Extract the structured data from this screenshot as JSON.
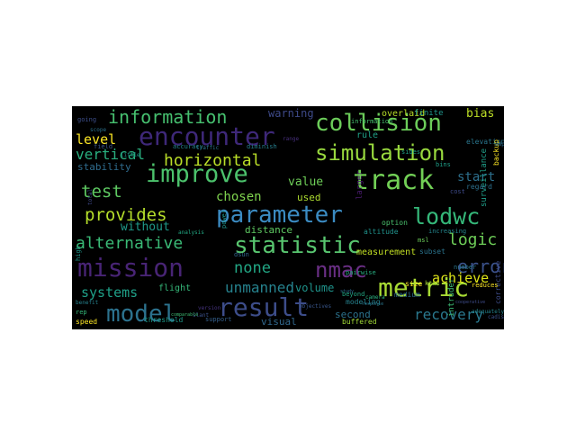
{
  "words": [
    {
      "text": "parameter",
      "color": "#3b8bc2"
    },
    {
      "text": "statistic",
      "color": "#58c56f"
    },
    {
      "text": "encounter",
      "color": "#3e2879"
    },
    {
      "text": "collision",
      "color": "#6ccd5a"
    },
    {
      "text": "simulation",
      "color": "#98d83e"
    },
    {
      "text": "improve",
      "color": "#4cc26c"
    },
    {
      "text": "track",
      "color": "#72d056"
    },
    {
      "text": "mission",
      "color": "#482475"
    },
    {
      "text": "model",
      "color": "#2c728e"
    },
    {
      "text": "result",
      "color": "#3d4d8a"
    },
    {
      "text": "metric",
      "color": "#a8db34"
    },
    {
      "text": "nmac",
      "color": "#6a2f85"
    },
    {
      "text": "lodwc",
      "color": "#35b779"
    },
    {
      "text": "information",
      "color": "#46c06f"
    },
    {
      "text": "horizontal",
      "color": "#bade28"
    },
    {
      "text": "provides",
      "color": "#b5de2b"
    },
    {
      "text": "alternative",
      "color": "#3aba76"
    },
    {
      "text": "test",
      "color": "#5ec962"
    },
    {
      "text": "vertical",
      "color": "#29af7f"
    },
    {
      "text": "logic",
      "color": "#6ece58"
    },
    {
      "text": "error",
      "color": "#3b528b"
    },
    {
      "text": "recovery",
      "color": "#2a788e"
    },
    {
      "text": "unmanned",
      "color": "#26828e"
    },
    {
      "text": "none",
      "color": "#22a785"
    },
    {
      "text": "systems",
      "color": "#1fa088"
    },
    {
      "text": "achieve",
      "color": "#dde318"
    },
    {
      "text": "level",
      "color": "#fde725"
    },
    {
      "text": "chosen",
      "color": "#7fd34e"
    },
    {
      "text": "without",
      "color": "#1f9a8a"
    },
    {
      "text": "start",
      "color": "#2d708e"
    },
    {
      "text": "warning",
      "color": "#3e4a89"
    },
    {
      "text": "stability",
      "color": "#2f6c8e"
    },
    {
      "text": "value",
      "color": "#6ece58"
    },
    {
      "text": "distance",
      "color": "#5ec962"
    },
    {
      "text": "measurement",
      "color": "#c2df23"
    },
    {
      "text": "volume",
      "color": "#1f948c"
    },
    {
      "text": "second",
      "color": "#2c738e"
    },
    {
      "text": "flight",
      "color": "#35b779"
    },
    {
      "text": "used",
      "color": "#addc30"
    },
    {
      "text": "bias",
      "color": "#bddf26"
    },
    {
      "text": "visual",
      "color": "#31688e"
    },
    {
      "text": "overlaid",
      "color": "#b8de29"
    },
    {
      "text": "finite",
      "color": "#1f958b"
    },
    {
      "text": "rule",
      "color": "#1fa187"
    },
    {
      "text": "elevation",
      "color": "#2a768e"
    },
    {
      "text": "altitude",
      "color": "#20928c"
    },
    {
      "text": "size",
      "color": "#fde725"
    },
    {
      "text": "medium",
      "color": "#2e6e8e"
    },
    {
      "text": "surveillance",
      "color": "#1f9e89"
    },
    {
      "text": "intruder",
      "color": "#3bbb75"
    },
    {
      "text": "modeling",
      "color": "#26828e"
    },
    {
      "text": "buffered",
      "color": "#a2da37"
    },
    {
      "text": "pairwise",
      "color": "#27ad81"
    },
    {
      "text": "subset",
      "color": "#2b748e"
    },
    {
      "text": "beyond",
      "color": "#22a884"
    },
    {
      "text": "option",
      "color": "#4ac16d"
    },
    {
      "text": "regard",
      "color": "#2d708e"
    },
    {
      "text": "corrective",
      "color": "#3e4c8a"
    },
    {
      "text": "backup",
      "color": "#fde725"
    },
    {
      "text": "increasing",
      "color": "#24868e"
    },
    {
      "text": "number",
      "color": "#2a788e"
    },
    {
      "text": "threshold",
      "color": "#1f9a8a"
    },
    {
      "text": "information",
      "color": "#46c06f"
    },
    {
      "text": "speed",
      "color": "#fde725"
    },
    {
      "text": "rep",
      "color": "#35b779"
    },
    {
      "text": "benefit",
      "color": "#26828e"
    },
    {
      "text": "field",
      "color": "#3a548c"
    },
    {
      "text": "going",
      "color": "#3d4e8a"
    },
    {
      "text": "scope",
      "color": "#2c738e"
    },
    {
      "text": "accuracy",
      "color": "#24878e"
    },
    {
      "text": "support",
      "color": "#35608d"
    },
    {
      "text": "slant",
      "color": "#3b528b"
    },
    {
      "text": "dsun",
      "color": "#31688e"
    },
    {
      "text": "analysis",
      "color": "#22a884"
    },
    {
      "text": "ktas",
      "color": "#a8db34"
    },
    {
      "text": "msl",
      "color": "#6ccd5a"
    },
    {
      "text": "total",
      "color": "#3e4989"
    },
    {
      "text": "traffic",
      "color": "#2b758e"
    },
    {
      "text": "little",
      "color": "#1f968b"
    },
    {
      "text": "summary",
      "color": "#2a788e"
    },
    {
      "text": "diminish",
      "color": "#277f8e"
    },
    {
      "text": "bins",
      "color": "#1f9f88"
    },
    {
      "text": "cost",
      "color": "#3e4a89"
    },
    {
      "text": "version",
      "color": "#46337f"
    },
    {
      "text": "power",
      "color": "#1f948c"
    },
    {
      "text": "larger",
      "color": "#481b6d"
    },
    {
      "text": "objectives",
      "color": "#39568c"
    },
    {
      "text": "study",
      "color": "#2f6b8e"
    },
    {
      "text": "comparable",
      "color": "#3dbc74"
    },
    {
      "text": "response",
      "color": "#2a778e"
    },
    {
      "text": "camera",
      "color": "#29af7f"
    },
    {
      "text": "reduces",
      "color": "#fde725"
    },
    {
      "text": "adequately",
      "color": "#25848e"
    },
    {
      "text": "cooperative",
      "color": "#3e4c8a"
    },
    {
      "text": "sides",
      "color": "#1fa088"
    },
    {
      "text": "high",
      "color": "#1f968b"
    },
    {
      "text": "range",
      "color": "#472f7d"
    },
    {
      "text": "ample",
      "color": "#2e6d8e"
    },
    {
      "text": "cadis",
      "color": "#3b528b"
    }
  ]
}
